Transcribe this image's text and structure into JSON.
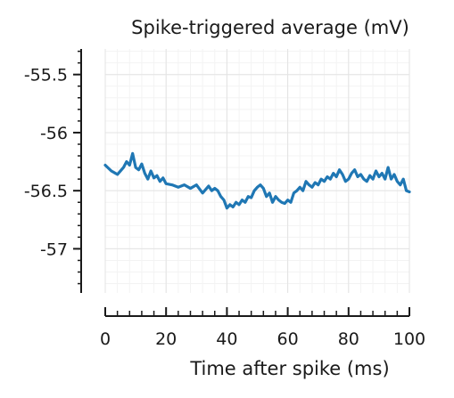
{
  "chart_data": {
    "type": "line",
    "title": "Spike-triggered average (mV)",
    "xlabel": "Time after spike (ms)",
    "ylabel": "",
    "xlim": [
      0,
      100
    ],
    "ylim": [
      -57.38,
      -55.28
    ],
    "xticks": [
      0,
      20,
      40,
      60,
      80,
      100
    ],
    "xtick_labels": [
      "0",
      "20",
      "40",
      "60",
      "80",
      "100"
    ],
    "yticks": [
      -55.5,
      -56,
      -56.5,
      -57
    ],
    "ytick_labels": [
      "-55.5",
      "-56",
      "-56.5",
      "-57"
    ],
    "grid": true,
    "line_color": "#1f77b4",
    "series": [
      {
        "x": [
          0,
          2,
          4,
          6,
          7,
          8,
          9,
          10,
          11,
          12,
          13,
          14,
          15,
          16,
          17,
          18,
          19,
          20,
          22,
          24,
          26,
          28,
          30,
          32,
          34,
          35,
          36,
          37,
          38,
          39,
          40,
          41,
          42,
          43,
          44,
          45,
          46,
          47,
          48,
          49,
          50,
          51,
          52,
          53,
          54,
          55,
          56,
          57,
          58,
          59,
          60,
          61,
          62,
          63,
          64,
          65,
          66,
          67,
          68,
          69,
          70,
          71,
          72,
          73,
          74,
          75,
          76,
          77,
          78,
          79,
          80,
          81,
          82,
          83,
          84,
          85,
          86,
          87,
          88,
          89,
          90,
          91,
          92,
          93,
          94,
          95,
          96,
          97,
          98,
          99,
          100
        ],
        "y": [
          -56.28,
          -56.33,
          -56.36,
          -56.3,
          -56.25,
          -56.28,
          -56.18,
          -56.3,
          -56.32,
          -56.27,
          -56.35,
          -56.4,
          -56.33,
          -56.39,
          -56.37,
          -56.42,
          -56.39,
          -56.44,
          -56.45,
          -56.47,
          -56.45,
          -56.48,
          -56.45,
          -56.52,
          -56.46,
          -56.5,
          -56.48,
          -56.5,
          -56.55,
          -56.58,
          -56.65,
          -56.62,
          -56.64,
          -56.6,
          -56.62,
          -56.58,
          -56.6,
          -56.55,
          -56.56,
          -56.5,
          -56.47,
          -56.45,
          -56.48,
          -56.55,
          -56.52,
          -56.6,
          -56.55,
          -56.58,
          -56.6,
          -56.61,
          -56.58,
          -56.6,
          -56.52,
          -56.5,
          -56.47,
          -56.5,
          -56.42,
          -56.45,
          -56.47,
          -56.43,
          -56.45,
          -56.4,
          -56.42,
          -56.38,
          -56.4,
          -56.35,
          -56.38,
          -56.32,
          -56.36,
          -56.42,
          -56.4,
          -56.35,
          -56.32,
          -56.38,
          -56.36,
          -56.4,
          -56.42,
          -56.37,
          -56.4,
          -56.33,
          -56.38,
          -56.35,
          -56.4,
          -56.3,
          -56.4,
          -56.36,
          -56.42,
          -56.45,
          -56.4,
          -56.5,
          -56.51
        ]
      }
    ]
  }
}
